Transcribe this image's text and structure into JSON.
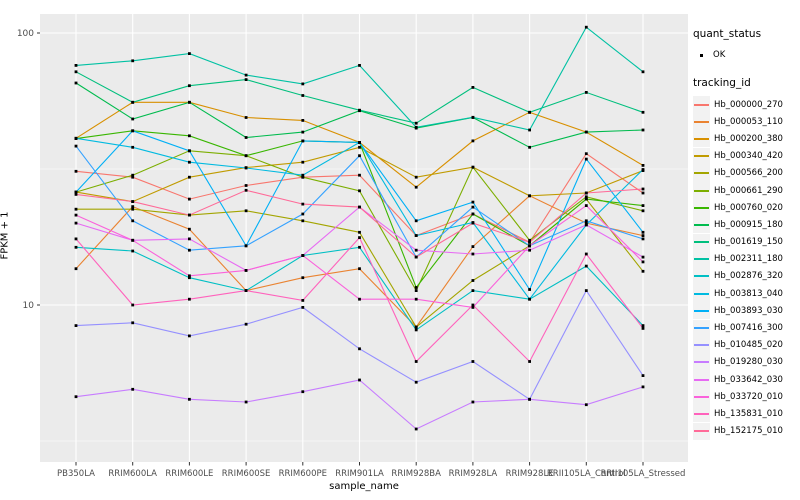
{
  "legend": {
    "quant_title": "quant_status",
    "quant_item": "OK",
    "tracking_title": "tracking_id"
  },
  "chart_data": {
    "type": "line",
    "title": "",
    "xlabel": "sample_name",
    "ylabel": "FPKM + 1",
    "y_scale": "log10",
    "y_ticks": [
      10,
      100
    ],
    "y_tick_labels": [
      "10",
      "100"
    ],
    "y_minor_ticks": [
      3.162,
      31.62
    ],
    "ylim": [
      2.65,
      117
    ],
    "grid": true,
    "legend_position": "right",
    "panel_color": "#EBEBEB",
    "grid_color": "#FFFFFF",
    "axis_text_color": "#4D4D4D",
    "point_color": "#000000",
    "quant_status": "OK",
    "categories": [
      "PB350LA",
      "RRIM600LA",
      "RRIM600LE",
      "RRIM600SE",
      "RRIM600PE",
      "RRIM901LA",
      "RRIM928BA",
      "RRIM928LA",
      "RRIM928LE",
      "RRII105LA_Control",
      "RRII105LA_Stressed"
    ],
    "series": [
      {
        "name": "Hb_000000_270",
        "color": "#F8766D",
        "values": [
          31,
          29.5,
          24.5,
          27.5,
          29.5,
          30,
          18,
          21.6,
          17,
          36,
          25.8
        ]
      },
      {
        "name": "Hb_000053_110",
        "color": "#EA8331",
        "values": [
          13.6,
          23,
          19,
          11.3,
          12.6,
          13.6,
          8.3,
          16.4,
          25.2,
          20,
          18
        ]
      },
      {
        "name": "Hb_000200_380",
        "color": "#D89000",
        "values": [
          41,
          55.6,
          55.6,
          48.9,
          47.7,
          39.6,
          27.1,
          40.1,
          51.1,
          43.2,
          32.6
        ]
      },
      {
        "name": "Hb_000340_420",
        "color": "#C09B00",
        "values": [
          26,
          24,
          29.5,
          32,
          33.5,
          38,
          29.5,
          32.1,
          25.2,
          25.8,
          31.2
        ]
      },
      {
        "name": "Hb_000566_200",
        "color": "#A3A500",
        "values": [
          22.5,
          22.5,
          21.4,
          22.2,
          20.4,
          18.5,
          8.3,
          12.3,
          16.5,
          24.5,
          13.3
        ]
      },
      {
        "name": "Hb_000661_290",
        "color": "#7CAE00",
        "values": [
          26,
          30,
          36.9,
          35.4,
          29.5,
          26.3,
          11.3,
          32.1,
          17.3,
          25,
          22.2
        ]
      },
      {
        "name": "Hb_000760_020",
        "color": "#39B600",
        "values": [
          40.9,
          43.7,
          41.9,
          35.4,
          40.1,
          39.6,
          11.6,
          21.6,
          16.5,
          24.5,
          23.2
        ]
      },
      {
        "name": "Hb_000915_180",
        "color": "#00BB4E",
        "values": [
          65.5,
          48.3,
          55.6,
          41.3,
          43.2,
          51.8,
          44.7,
          48.9,
          38,
          43.2,
          44
        ]
      },
      {
        "name": "Hb_001619_150",
        "color": "#00BF7D",
        "values": [
          72,
          55.6,
          64,
          67.4,
          58.9,
          52,
          46.6,
          63.1,
          51.1,
          60.5,
          51.1
        ]
      },
      {
        "name": "Hb_002311_180",
        "color": "#00C1A3",
        "values": [
          76,
          79,
          84,
          70,
          65,
          76,
          45,
          49,
          44,
          105,
          72
        ]
      },
      {
        "name": "Hb_002876_320",
        "color": "#00BFC4",
        "values": [
          16.3,
          15.8,
          12.6,
          11.3,
          15.2,
          16.3,
          8.1,
          11.3,
          10.5,
          13.9,
          8.4
        ]
      },
      {
        "name": "Hb_003813_040",
        "color": "#00BAE0",
        "values": [
          41,
          38,
          33.5,
          31.9,
          30,
          39.6,
          18,
          20.1,
          10.5,
          19.7,
          31.5
        ]
      },
      {
        "name": "Hb_003893_030",
        "color": "#00B0F6",
        "values": [
          26,
          43.7,
          36.9,
          16.5,
          40.1,
          39.6,
          20.4,
          23.9,
          11.4,
          34.4,
          18.5
        ]
      },
      {
        "name": "Hb_007416_300",
        "color": "#35A2FF",
        "values": [
          38.4,
          20.4,
          15.9,
          16.5,
          21.6,
          35.4,
          15,
          22.9,
          16.5,
          20.4,
          17.5
        ]
      },
      {
        "name": "Hb_010485_020",
        "color": "#9590FF",
        "values": [
          8.4,
          8.6,
          7.7,
          8.5,
          9.8,
          6.9,
          5.2,
          6.2,
          4.5,
          11.3,
          5.5
        ]
      },
      {
        "name": "Hb_019280_030",
        "color": "#C77CFF",
        "values": [
          4.6,
          4.9,
          4.5,
          4.4,
          4.8,
          5.3,
          3.5,
          4.4,
          4.5,
          4.3,
          5
        ]
      },
      {
        "name": "Hb_033642_030",
        "color": "#E76BF3",
        "values": [
          20,
          17.3,
          17.5,
          13.4,
          15.2,
          22.9,
          15.9,
          15.4,
          15.9,
          19.7,
          15
        ]
      },
      {
        "name": "Hb_033720_010",
        "color": "#FA62DB",
        "values": [
          21.4,
          17.3,
          12.8,
          13.4,
          15.2,
          10.5,
          10.5,
          9.8,
          16.5,
          23.2,
          14.4
        ]
      },
      {
        "name": "Hb_135831_010",
        "color": "#FF62BC",
        "values": [
          17.5,
          10,
          10.5,
          11.3,
          10.4,
          17.7,
          6.2,
          10,
          6.2,
          15.4,
          8.2
        ]
      },
      {
        "name": "Hb_152175_010",
        "color": "#FF6A98",
        "values": [
          25.5,
          24,
          21.4,
          26.4,
          23.5,
          22.9,
          15,
          20,
          17,
          25.8,
          26.7
        ]
      }
    ]
  }
}
